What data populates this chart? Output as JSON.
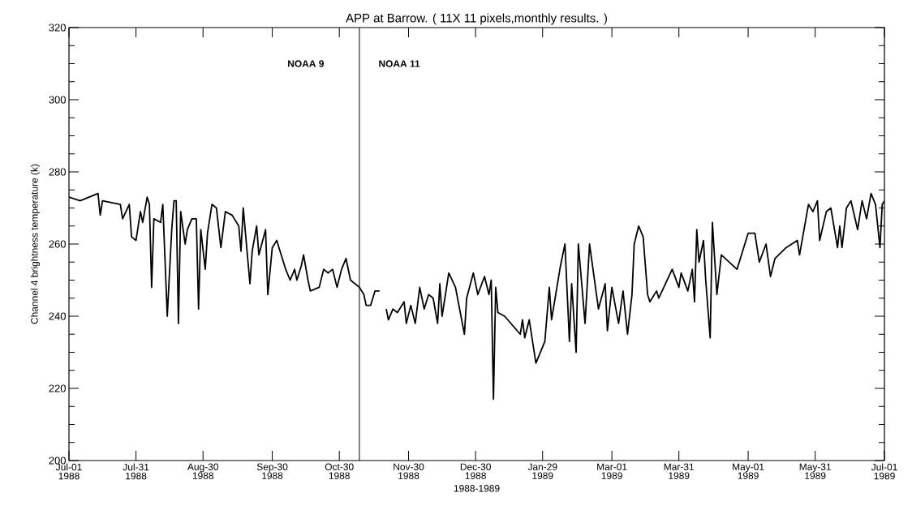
{
  "chart_data": {
    "type": "line",
    "title": "APP at Barrow. ( 11X 11 pixels,monthly results. )",
    "xlabel": "1988-1989",
    "ylabel": "Channel 4 brightness temperature (k)",
    "x": [
      "1988-07-01",
      "1988-07-06",
      "1988-07-14",
      "1988-07-15",
      "1988-07-16",
      "1988-07-24",
      "1988-07-25",
      "1988-07-28",
      "1988-07-29",
      "1988-07-31",
      "1988-08-02",
      "1988-08-03",
      "1988-08-05",
      "1988-08-06",
      "1988-08-07",
      "1988-08-08",
      "1988-08-11",
      "1988-08-12",
      "1988-08-14",
      "1988-08-16",
      "1988-08-17",
      "1988-08-18",
      "1988-08-19",
      "1988-08-20",
      "1988-08-22",
      "1988-08-23",
      "1988-08-25",
      "1988-08-27",
      "1988-08-28",
      "1988-08-29",
      "1988-08-31",
      "1988-09-01",
      "1988-09-03",
      "1988-09-05",
      "1988-09-07",
      "1988-09-09",
      "1988-09-12",
      "1988-09-15",
      "1988-09-16",
      "1988-09-17",
      "1988-09-20",
      "1988-09-21",
      "1988-09-23",
      "1988-09-24",
      "1988-09-27",
      "1988-09-28",
      "1988-09-30",
      "1988-10-02",
      "1988-10-04",
      "1988-10-06",
      "1988-10-08",
      "1988-10-10",
      "1988-10-11",
      "1988-10-13",
      "1988-10-14",
      "1988-10-16",
      "1988-10-17",
      "1988-10-21",
      "1988-10-23",
      "1988-10-25",
      "1988-10-27",
      "1988-10-29",
      "1988-10-31",
      "1988-11-02",
      "1988-11-04",
      "1988-11-08",
      "1988-11-10",
      "1988-11-11",
      "1988-11-13",
      "1988-11-15",
      "1988-11-17",
      "1988-11-18",
      "1988-11-20",
      "1988-11-21",
      "1988-11-23",
      "1988-11-25",
      "1988-11-28",
      "1988-11-29",
      "1988-12-01",
      "1988-12-03",
      "1988-12-05",
      "1988-12-07",
      "1988-12-09",
      "1988-12-11",
      "1988-12-13",
      "1988-12-14",
      "1988-12-15",
      "1988-12-18",
      "1988-12-21",
      "1988-12-25",
      "1988-12-26",
      "1988-12-29",
      "1988-12-31",
      "1989-01-03",
      "1989-01-05",
      "1989-01-06",
      "1989-01-07",
      "1989-01-08",
      "1989-01-09",
      "1989-01-12",
      "1989-01-19",
      "1989-01-20",
      "1989-01-21",
      "1989-01-23",
      "1989-01-26",
      "1989-01-30",
      "1989-02-01",
      "1989-02-02",
      "1989-02-06",
      "1989-02-08",
      "1989-02-10",
      "1989-02-11",
      "1989-02-13",
      "1989-02-14",
      "1989-02-17",
      "1989-02-19",
      "1989-02-21",
      "1989-02-23",
      "1989-02-26",
      "1989-02-27",
      "1989-03-01",
      "1989-03-04",
      "1989-03-06",
      "1989-03-08",
      "1989-03-10",
      "1989-03-11",
      "1989-03-13",
      "1989-03-15",
      "1989-03-17",
      "1989-03-18",
      "1989-03-21",
      "1989-03-22",
      "1989-03-28",
      "1989-03-31",
      "1989-04-01",
      "1989-04-04",
      "1989-04-06",
      "1989-04-07",
      "1989-04-08",
      "1989-04-09",
      "1989-04-11",
      "1989-04-12",
      "1989-04-14",
      "1989-04-15",
      "1989-04-17",
      "1989-04-19",
      "1989-04-26",
      "1989-05-01",
      "1989-05-04",
      "1989-05-06",
      "1989-05-09",
      "1989-05-11",
      "1989-05-13",
      "1989-05-18",
      "1989-05-23",
      "1989-05-24",
      "1989-05-28",
      "1989-05-30",
      "1989-06-01",
      "1989-06-02",
      "1989-06-05",
      "1989-06-07",
      "1989-06-10",
      "1989-06-11",
      "1989-06-12",
      "1989-06-14",
      "1989-06-16",
      "1989-06-19",
      "1989-06-21",
      "1989-06-23",
      "1989-06-25",
      "1989-06-27",
      "1989-06-29",
      "1989-06-30",
      "1989-07-01"
    ],
    "series": [
      {
        "color": "#000000",
        "values": [
          273,
          272,
          274,
          268,
          272,
          271,
          267,
          271,
          262,
          261,
          269,
          266,
          273,
          271,
          248,
          267,
          266,
          271,
          240,
          264,
          272,
          272,
          238,
          269,
          260,
          264,
          267,
          267,
          242,
          264,
          253,
          263,
          271,
          270,
          259,
          269,
          268,
          265,
          258,
          270,
          249,
          258,
          265,
          257,
          264,
          246,
          259,
          261,
          257,
          253,
          250,
          253,
          250,
          254,
          257,
          250,
          247,
          248,
          253,
          252,
          253,
          248,
          253,
          256,
          250,
          248,
          246,
          243,
          243,
          247,
          247,
          null,
          242,
          239,
          242,
          241,
          244,
          238,
          243,
          238,
          248,
          242,
          246,
          245,
          238,
          249,
          240,
          252,
          248,
          235,
          245,
          252,
          246,
          251,
          246,
          250,
          217,
          248,
          241,
          240,
          235,
          239,
          234,
          239,
          227,
          233,
          248,
          239,
          254,
          260,
          233,
          249,
          230,
          260,
          238,
          260,
          251,
          242,
          249,
          236,
          248,
          238,
          247,
          235,
          246,
          260,
          265,
          262,
          246,
          244,
          247,
          245,
          253,
          248,
          252,
          247,
          253,
          244,
          264,
          255,
          261,
          250,
          234,
          266,
          246,
          257,
          253,
          263,
          263,
          255,
          260,
          251,
          256,
          259,
          261,
          257,
          271,
          269,
          272,
          261,
          269,
          270,
          259,
          265,
          259,
          270,
          272,
          264,
          272,
          267,
          274,
          271,
          259,
          271,
          272
        ]
      }
    ],
    "xlim": [
      "1988-07-01",
      "1989-07-01"
    ],
    "xticks": [
      {
        "value": "1988-07-01",
        "label": "Jul-01 1988"
      },
      {
        "value": "1988-07-31",
        "label": "Jul-31 1988"
      },
      {
        "value": "1988-08-30",
        "label": "Aug-30 1988"
      },
      {
        "value": "1988-09-30",
        "label": "Sep-30 1988"
      },
      {
        "value": "1988-10-30",
        "label": "Oct-30 1988"
      },
      {
        "value": "1988-11-30",
        "label": "Nov-30 1988"
      },
      {
        "value": "1988-12-30",
        "label": "Dec-30 1988"
      },
      {
        "value": "1989-01-29",
        "label": "Jan-29 1989"
      },
      {
        "value": "1989-03-01",
        "label": "Mar-01 1989"
      },
      {
        "value": "1989-03-31",
        "label": "Mar-31 1989"
      },
      {
        "value": "1989-05-01",
        "label": "May-01 1989"
      },
      {
        "value": "1989-05-31",
        "label": "May-31 1989"
      },
      {
        "value": "1989-07-01",
        "label": "Jul-01 1989"
      }
    ],
    "ylim": [
      200,
      320
    ],
    "yticks": [
      200,
      220,
      240,
      260,
      280,
      300,
      320
    ],
    "ref_lines": [
      {
        "axis": "x",
        "value": "1988-11-08",
        "color": "#000000"
      }
    ],
    "annotations": [
      "NOAA 9",
      "NOAA 11"
    ],
    "grid": false,
    "marker": "none",
    "line_style": "solid"
  }
}
